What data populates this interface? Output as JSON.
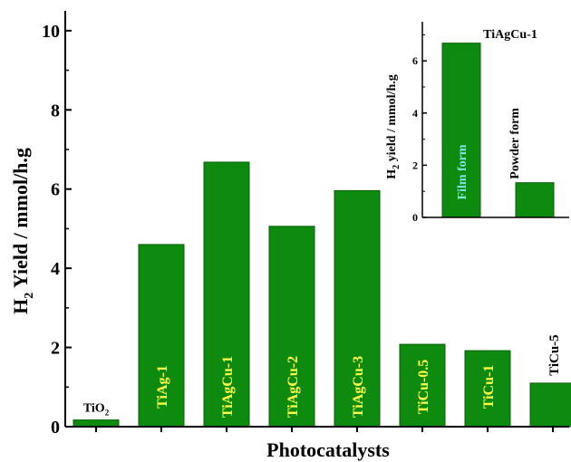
{
  "colors": {
    "bar": "#0e8a0e",
    "bar_stroke": "#0a5f0a",
    "label_in_bar": "#ffff44",
    "label_film": "#7fe6e6",
    "axis": "#000000"
  },
  "chart_data": [
    {
      "type": "bar",
      "xlabel": "Photocatalysts",
      "ylabel_sub": "2",
      "ylabel_rest": " Yield / mmol/h.g",
      "ylabel_prefix": "H",
      "ylim": [
        0,
        10.5
      ],
      "yticks": [
        "0",
        "2",
        "4",
        "6",
        "8",
        "10"
      ],
      "categories": [
        "TiO",
        "TiAg-1",
        "TiAgCu-1",
        "TiAgCu-2",
        "TiAgCu-3",
        "TiCu-0.5",
        "TiCu-1",
        "TiCu-5"
      ],
      "values": [
        0.17,
        4.6,
        6.68,
        5.06,
        5.96,
        2.08,
        1.92,
        1.1
      ],
      "label_position": [
        "above",
        "inside",
        "inside",
        "inside",
        "inside",
        "inside",
        "inside",
        "above"
      ],
      "tio2_subscript": "2"
    },
    {
      "type": "bar",
      "title": "TiAgCu-1",
      "ylabel_prefix": "H",
      "ylabel_sub": "2",
      "ylabel_rest": " yield / mmol/h.g",
      "ylim": [
        0,
        7.5
      ],
      "yticks": [
        "0",
        "2",
        "4",
        "6"
      ],
      "categories": [
        "Film form",
        "Powder form"
      ],
      "values": [
        6.68,
        1.33
      ],
      "label_position": [
        "inside",
        "above"
      ]
    }
  ]
}
